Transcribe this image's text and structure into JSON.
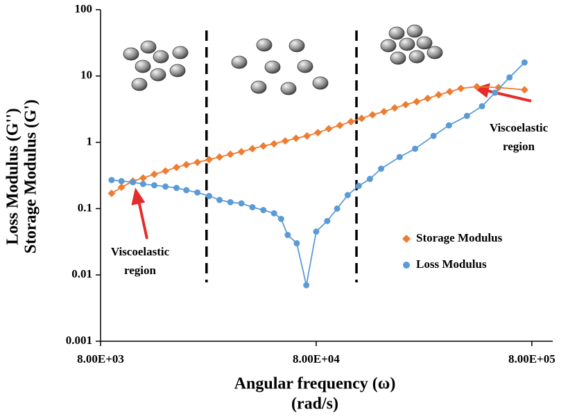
{
  "chart_data": {
    "type": "line",
    "x_label": [
      "Angular frequency (ω)",
      "(rad/s)"
    ],
    "y_label": [
      "Loss Modulus (G'')",
      "Storage Modulus (G')"
    ],
    "log_x": true,
    "log_y": true,
    "xlim": [
      8000,
      1000000
    ],
    "ylim": [
      0.001,
      100
    ],
    "xticks": [
      {
        "value": 8000,
        "label": "8.00E+03"
      },
      {
        "value": 80000,
        "label": "8.00E+04"
      },
      {
        "value": 800000,
        "label": "8.00E+05"
      }
    ],
    "yticks": [
      0.001,
      0.01,
      0.1,
      1,
      10,
      100
    ],
    "vlines": [
      24800,
      123000
    ],
    "legend": "right",
    "series": [
      {
        "name": "Storage Modulus",
        "color": "#ed7d31",
        "marker": "diamond",
        "x": [
          9000,
          10000,
          11300,
          12600,
          14200,
          16000,
          18000,
          20000,
          22500,
          25500,
          28500,
          32000,
          36000,
          40500,
          45500,
          51000,
          57500,
          64500,
          72500,
          81500,
          91500,
          103000,
          116000,
          130000,
          146000,
          165000,
          185000,
          208000,
          234000,
          263000,
          296000,
          333000,
          375000,
          445000,
          560000,
          740000
        ],
        "values": [
          0.17,
          0.21,
          0.26,
          0.29,
          0.33,
          0.37,
          0.42,
          0.46,
          0.5,
          0.55,
          0.6,
          0.66,
          0.72,
          0.8,
          0.88,
          0.95,
          1.05,
          1.15,
          1.25,
          1.4,
          1.6,
          1.8,
          2.05,
          2.3,
          2.6,
          2.9,
          3.3,
          3.7,
          4.1,
          4.6,
          5.2,
          5.8,
          6.5,
          6.9,
          6.7,
          6.2
        ]
      },
      {
        "name": "Loss Modulus",
        "color": "#5b9bd5",
        "marker": "circle",
        "x": [
          9000,
          10000,
          11300,
          12600,
          14200,
          16000,
          18000,
          20000,
          22500,
          25500,
          28500,
          32000,
          36000,
          40500,
          45500,
          51000,
          55000,
          59000,
          65000,
          72000,
          80000,
          90000,
          100000,
          112000,
          126000,
          142000,
          160000,
          195000,
          230000,
          280000,
          330000,
          400000,
          470000,
          540000,
          630000,
          740000
        ],
        "values": [
          0.27,
          0.26,
          0.25,
          0.235,
          0.225,
          0.215,
          0.205,
          0.19,
          0.175,
          0.155,
          0.135,
          0.125,
          0.12,
          0.105,
          0.095,
          0.085,
          0.07,
          0.04,
          0.03,
          0.007,
          0.045,
          0.065,
          0.1,
          0.16,
          0.22,
          0.28,
          0.4,
          0.6,
          0.8,
          1.25,
          1.8,
          2.5,
          3.5,
          5.6,
          9.5,
          16
        ]
      }
    ],
    "annotations": [
      {
        "lines": [
          "Viscoelastic",
          "region"
        ]
      },
      {
        "lines": [
          "Viscoelastic",
          "region"
        ]
      }
    ]
  }
}
